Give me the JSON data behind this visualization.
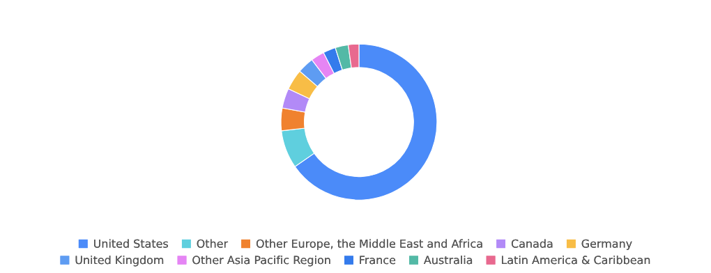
{
  "chart_data": {
    "type": "donut",
    "categories": [
      "United States",
      "Other",
      "Other Europe, the Middle East and Africa",
      "Canada",
      "Germany",
      "United Kingdom",
      "Other Asia Pacific Region",
      "France",
      "Australia",
      "Latin America & Caribbean"
    ],
    "values": [
      65.3,
      7.9,
      4.7,
      4.1,
      4.3,
      3.4,
      2.8,
      2.6,
      2.7,
      2.2
    ],
    "colors": [
      "#4b8bf9",
      "#5fcfde",
      "#f0822f",
      "#b28af7",
      "#f8bd46",
      "#5e9cf2",
      "#e585f4",
      "#347bec",
      "#53b9a6",
      "#e8698f"
    ],
    "legend": "bottom"
  }
}
